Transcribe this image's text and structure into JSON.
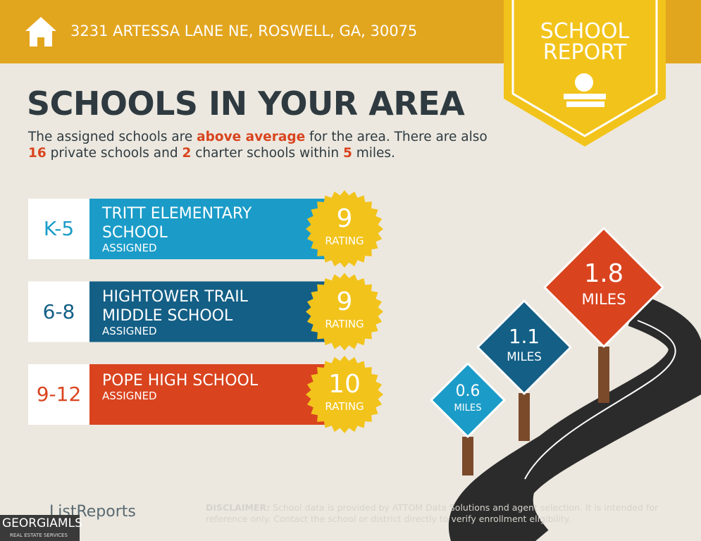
{
  "header": {
    "address": "3231 ARTESSA LANE NE, ROSWELL, GA, 30075"
  },
  "badge": {
    "line1": "SCHOOL",
    "line2": "REPORT"
  },
  "heading": "SCHOOLS IN YOUR AREA",
  "intro": [
    {
      "text": "The assigned schools are ",
      "highlight": false
    },
    {
      "text": "above average",
      "highlight": true
    },
    {
      "text": " for the area. There are also ",
      "highlight": false
    },
    {
      "text": "16",
      "highlight": true
    },
    {
      "text": " private schools and ",
      "highlight": false
    },
    {
      "text": "2",
      "highlight": true
    },
    {
      "text": " charter schools within ",
      "highlight": false
    },
    {
      "text": "5",
      "highlight": true
    },
    {
      "text": " miles.",
      "highlight": false
    }
  ],
  "schools": [
    {
      "grades": "K-5",
      "name": "TRITT ELEMENTARY SCHOOL",
      "status": "ASSIGNED",
      "rating": "9",
      "rating_label": "RATING",
      "color": "#1b9cc8",
      "grade_color": "#1b9cc8"
    },
    {
      "grades": "6-8",
      "name": "HIGHTOWER TRAIL MIDDLE SCHOOL",
      "status": "ASSIGNED",
      "rating": "9",
      "rating_label": "RATING",
      "color": "#135f86",
      "grade_color": "#135f86"
    },
    {
      "grades": "9-12",
      "name": "POPE HIGH SCHOOL",
      "status": "ASSIGNED",
      "rating": "10",
      "rating_label": "RATING",
      "color": "#d9441f",
      "grade_color": "#d9441f"
    }
  ],
  "signs": [
    {
      "distance": "0.6",
      "unit": "MILES",
      "color": "#1b9cc8"
    },
    {
      "distance": "1.1",
      "unit": "MILES",
      "color": "#135f86"
    },
    {
      "distance": "1.8",
      "unit": "MILES",
      "color": "#d9441f"
    }
  ],
  "footer": {
    "logo": "ListReports",
    "disclaimer_label": "DISCLAIMER:",
    "disclaimer": "School data is provided by ATTOM Data Solutions and agent selection. It is intended for reference only. Contact the school or district directly to verify enrollment eligibility."
  },
  "watermark": {
    "brand": "GEORGIAMLS",
    "tagline": "REAL ESTATE SERVICES"
  }
}
